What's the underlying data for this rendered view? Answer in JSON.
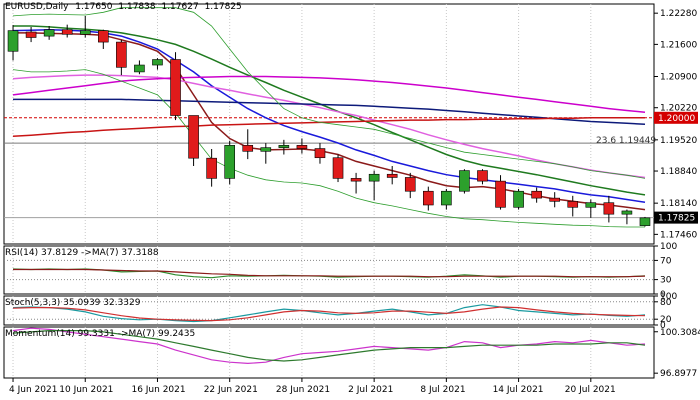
{
  "colors": {
    "bull": "#2ca02c",
    "bear": "#e01b1b",
    "grid": "#c8c8c8",
    "frame": "#000000",
    "hline_red": "#d40000",
    "hline_gray": "#7a7a7a",
    "price_tag_bg": "#000000",
    "red_tag_bg": "#d40000",
    "ma_brown": "#8b1a1a",
    "ma_blue": "#1a1adb",
    "ma_green": "#1f7a1f",
    "ma_pink": "#e060e0",
    "ma_magenta": "#cc00cc",
    "ma_navy": "#0d1a7a",
    "ma_darkred": "#c81414",
    "bb_green": "#2e9e2e",
    "ind_green": "#2e8b2e",
    "ind_brown": "#8b1a1a",
    "stoch_teal": "#1a9aa0",
    "stoch_red": "#d03030",
    "mom_magenta": "#cc33cc",
    "mom_green": "#2e7a2e"
  },
  "chart_data": {
    "type": "candlestick",
    "symbol": "EURUSD,Daily",
    "ohlc_text": {
      "open": "1.17650",
      "high": "1.17838",
      "low": "1.17627",
      "close": "1.17825"
    },
    "current_price": "1.17825",
    "level_price": "1.20000",
    "fib_label": "23.6 1.19449",
    "price_ticks": [
      "1.22280",
      "1.21600",
      "1.20900",
      "1.20220",
      "1.19520",
      "1.18840",
      "1.18140",
      "1.17460"
    ],
    "ylim": [
      1.1725,
      1.2248
    ],
    "dates": [
      "4 Jun 2021",
      "10 Jun 2021",
      "16 Jun 2021",
      "22 Jun 2021",
      "28 Jun 2021",
      "2 Jul 2021",
      "8 Jul 2021",
      "14 Jul 2021",
      "20 Jul 2021"
    ],
    "candles": [
      {
        "o": 1.2145,
        "h": 1.2202,
        "l": 1.2125,
        "c": 1.219
      },
      {
        "o": 1.2187,
        "h": 1.2198,
        "l": 1.2165,
        "c": 1.2175
      },
      {
        "o": 1.2178,
        "h": 1.22,
        "l": 1.217,
        "c": 1.2192
      },
      {
        "o": 1.2192,
        "h": 1.2203,
        "l": 1.2175,
        "c": 1.2182
      },
      {
        "o": 1.2182,
        "h": 1.2222,
        "l": 1.2175,
        "c": 1.219
      },
      {
        "o": 1.219,
        "h": 1.2192,
        "l": 1.215,
        "c": 1.2165
      },
      {
        "o": 1.2165,
        "h": 1.217,
        "l": 1.2093,
        "c": 1.211
      },
      {
        "o": 1.21,
        "h": 1.2125,
        "l": 1.2095,
        "c": 1.2115
      },
      {
        "o": 1.2115,
        "h": 1.213,
        "l": 1.2105,
        "c": 1.2127
      },
      {
        "o": 1.2127,
        "h": 1.2143,
        "l": 1.1995,
        "c": 1.2005
      },
      {
        "o": 1.2005,
        "h": 1.2005,
        "l": 1.1895,
        "c": 1.1912
      },
      {
        "o": 1.1912,
        "h": 1.1932,
        "l": 1.185,
        "c": 1.1868
      },
      {
        "o": 1.1868,
        "h": 1.195,
        "l": 1.1855,
        "c": 1.194
      },
      {
        "o": 1.194,
        "h": 1.1975,
        "l": 1.191,
        "c": 1.1927
      },
      {
        "o": 1.1927,
        "h": 1.1945,
        "l": 1.19,
        "c": 1.1935
      },
      {
        "o": 1.1935,
        "h": 1.1952,
        "l": 1.192,
        "c": 1.194
      },
      {
        "o": 1.194,
        "h": 1.1955,
        "l": 1.1922,
        "c": 1.1933
      },
      {
        "o": 1.1933,
        "h": 1.1945,
        "l": 1.19,
        "c": 1.1913
      },
      {
        "o": 1.1913,
        "h": 1.192,
        "l": 1.186,
        "c": 1.1868
      },
      {
        "o": 1.1868,
        "h": 1.188,
        "l": 1.1835,
        "c": 1.1862
      },
      {
        "o": 1.1862,
        "h": 1.1885,
        "l": 1.182,
        "c": 1.1877
      },
      {
        "o": 1.1877,
        "h": 1.1895,
        "l": 1.1855,
        "c": 1.187
      },
      {
        "o": 1.187,
        "h": 1.188,
        "l": 1.1825,
        "c": 1.184
      },
      {
        "o": 1.184,
        "h": 1.185,
        "l": 1.1798,
        "c": 1.181
      },
      {
        "o": 1.181,
        "h": 1.1845,
        "l": 1.18,
        "c": 1.184
      },
      {
        "o": 1.184,
        "h": 1.1888,
        "l": 1.1835,
        "c": 1.1885
      },
      {
        "o": 1.1885,
        "h": 1.1888,
        "l": 1.1855,
        "c": 1.1862
      },
      {
        "o": 1.1862,
        "h": 1.1875,
        "l": 1.18,
        "c": 1.1805
      },
      {
        "o": 1.1805,
        "h": 1.1845,
        "l": 1.18,
        "c": 1.184
      },
      {
        "o": 1.184,
        "h": 1.1848,
        "l": 1.1815,
        "c": 1.1825
      },
      {
        "o": 1.1825,
        "h": 1.1838,
        "l": 1.1805,
        "c": 1.1818
      },
      {
        "o": 1.1818,
        "h": 1.183,
        "l": 1.1785,
        "c": 1.1805
      },
      {
        "o": 1.1805,
        "h": 1.1822,
        "l": 1.1782,
        "c": 1.1815
      },
      {
        "o": 1.1815,
        "h": 1.183,
        "l": 1.1772,
        "c": 1.179
      },
      {
        "o": 1.179,
        "h": 1.18,
        "l": 1.1768,
        "c": 1.1797
      },
      {
        "o": 1.1765,
        "h": 1.1784,
        "l": 1.1763,
        "c": 1.1782
      }
    ],
    "ma_lines": [
      {
        "color": "#8b1a1a",
        "values": [
          1.2185,
          1.2185,
          1.2184,
          1.2183,
          1.2182,
          1.218,
          1.217,
          1.216,
          1.2145,
          1.211,
          1.205,
          1.199,
          1.1955,
          1.1935,
          1.193,
          1.1931,
          1.1932,
          1.1928,
          1.192,
          1.1905,
          1.1895,
          1.1885,
          1.1875,
          1.1862,
          1.1852,
          1.1848,
          1.185,
          1.1845,
          1.1838,
          1.183,
          1.1823,
          1.1818,
          1.1813,
          1.181,
          1.1805,
          1.18
        ]
      },
      {
        "color": "#1a1adb",
        "values": [
          1.219,
          1.2191,
          1.2192,
          1.2191,
          1.2189,
          1.2185,
          1.2178,
          1.2165,
          1.215,
          1.2125,
          1.21,
          1.207,
          1.2045,
          1.202,
          1.2,
          1.1983,
          1.197,
          1.1958,
          1.1945,
          1.193,
          1.1918,
          1.1905,
          1.1895,
          1.1885,
          1.1876,
          1.187,
          1.1865,
          1.186,
          1.1855,
          1.185,
          1.1845,
          1.1838,
          1.1832,
          1.1828,
          1.1822,
          1.1816
        ]
      },
      {
        "color": "#1f7a1f",
        "values": [
          1.22,
          1.22,
          1.2198,
          1.2195,
          1.2193,
          1.219,
          1.2185,
          1.2178,
          1.217,
          1.216,
          1.2145,
          1.2128,
          1.211,
          1.2093,
          1.2077,
          1.206,
          1.2045,
          1.203,
          1.2014,
          1.2,
          1.1985,
          1.1968,
          1.1952,
          1.1936,
          1.192,
          1.1907,
          1.1897,
          1.189,
          1.1883,
          1.1876,
          1.1868,
          1.186,
          1.1852,
          1.1845,
          1.1838,
          1.1832
        ]
      },
      {
        "color": "#e060e0",
        "values": [
          1.2085,
          1.2088,
          1.209,
          1.2092,
          1.2093,
          1.2093,
          1.2092,
          1.209,
          1.2088,
          1.2083,
          1.2075,
          1.2067,
          1.206,
          1.2052,
          1.2045,
          1.2038,
          1.203,
          1.2022,
          1.2013,
          1.2005,
          1.1995,
          1.1985,
          1.1975,
          1.1963,
          1.1952,
          1.1942,
          1.1933,
          1.1925,
          1.1917,
          1.1908,
          1.19,
          1.1893,
          1.1886,
          1.188,
          1.1875,
          1.187
        ]
      },
      {
        "color": "#cc00cc",
        "values": [
          1.205,
          1.2055,
          1.206,
          1.2065,
          1.207,
          1.2075,
          1.208,
          1.2083,
          1.2085,
          1.2087,
          1.2088,
          1.2089,
          1.209,
          1.209,
          1.209,
          1.2089,
          1.2088,
          1.2087,
          1.2085,
          1.2083,
          1.208,
          1.2077,
          1.2073,
          1.2069,
          1.2065,
          1.206,
          1.2055,
          1.205,
          1.2045,
          1.204,
          1.2035,
          1.203,
          1.2025,
          1.202,
          1.2016,
          1.2012
        ]
      },
      {
        "color": "#0d1a7a",
        "values": [
          1.204,
          1.204,
          1.204,
          1.204,
          1.204,
          1.204,
          1.204,
          1.2039,
          1.2038,
          1.2037,
          1.2036,
          1.2035,
          1.2034,
          1.2033,
          1.2032,
          1.2031,
          1.203,
          1.2029,
          1.2028,
          1.2027,
          1.2025,
          1.2023,
          1.2021,
          1.2019,
          1.2016,
          1.2013,
          1.201,
          1.2007,
          1.2004,
          1.2001,
          1.1998,
          1.1995,
          1.1992,
          1.199,
          1.1988,
          1.1986
        ]
      },
      {
        "color": "#c81414",
        "values": [
          1.196,
          1.1962,
          1.1965,
          1.1968,
          1.197,
          1.1973,
          1.1975,
          1.1977,
          1.1979,
          1.1981,
          1.1982,
          1.1984,
          1.1985,
          1.1986,
          1.1987,
          1.1988,
          1.1989,
          1.199,
          1.1991,
          1.1992,
          1.1993,
          1.1994,
          1.1995,
          1.1995,
          1.1996,
          1.1996,
          1.1997,
          1.1997,
          1.1998,
          1.1998,
          1.1999,
          1.1999,
          1.2,
          1.2,
          1.2,
          1.2
        ]
      },
      {
        "color": "#2e9e2e",
        "values": [
          1.2105,
          1.21,
          1.21,
          1.2102,
          1.2105,
          1.2095,
          1.208,
          1.2065,
          1.205,
          1.201,
          1.196,
          1.191,
          1.189,
          1.1875,
          1.1865,
          1.186,
          1.1858,
          1.1852,
          1.184,
          1.1825,
          1.1815,
          1.1808,
          1.18,
          1.1792,
          1.1785,
          1.178,
          1.1778,
          1.1775,
          1.1772,
          1.177,
          1.1768,
          1.1766,
          1.1765,
          1.1763,
          1.1762,
          1.1762
        ]
      },
      {
        "color": "#2e9e2e",
        "values": [
          1.2222,
          1.2225,
          1.2226,
          1.2225,
          1.2224,
          1.223,
          1.224,
          1.224,
          1.224,
          1.224,
          1.223,
          1.22,
          1.215,
          1.21,
          1.206,
          1.202,
          1.2,
          1.199,
          1.1985,
          1.198,
          1.1975,
          1.1965,
          1.1955,
          1.1945,
          1.1935,
          1.1925,
          1.192,
          1.1915,
          1.191,
          1.1905,
          1.19,
          1.1893,
          1.1885,
          1.188,
          1.1875,
          1.1868
        ]
      }
    ],
    "panels": {
      "rsi": {
        "label": "RSI(14) 37.8129 ->MA(7) 37.3188",
        "ticks": [
          "100",
          "70",
          "30",
          "0"
        ],
        "ylim": [
          0,
          100
        ],
        "levels": [
          70,
          30
        ],
        "series": [
          {
            "color": "#2e8b2e",
            "values": [
              52,
              51,
              52,
              51,
              52,
              50,
              46,
              47,
              48,
              40,
              36,
              34,
              38,
              37,
              38,
              39,
              38,
              37,
              35,
              36,
              37,
              37,
              36,
              35,
              37,
              40,
              38,
              35,
              37,
              37,
              36,
              35,
              36,
              35,
              36,
              37.8
            ]
          },
          {
            "color": "#8b1a1a",
            "values": [
              51,
              51,
              51,
              51,
              51,
              50,
              49,
              48,
              48,
              46,
              44,
              42,
              41,
              39,
              38,
              38,
              38,
              38,
              37,
              37,
              37,
              37,
              37,
              36,
              36,
              37,
              37,
              37,
              37,
              37,
              37,
              36,
              36,
              36,
              36,
              37.3
            ]
          }
        ]
      },
      "stoch": {
        "label": "Stoch(5,3,3) 35.0939 32.3329",
        "ticks": [
          "100",
          "80",
          "20",
          "0"
        ],
        "ylim": [
          0,
          100
        ],
        "levels": [
          80,
          20
        ],
        "series": [
          {
            "color": "#1a9aa0",
            "values": [
              60,
              62,
              60,
              55,
              45,
              30,
              22,
              18,
              20,
              15,
              12,
              15,
              25,
              35,
              45,
              55,
              50,
              42,
              35,
              40,
              48,
              55,
              45,
              35,
              40,
              60,
              70,
              62,
              50,
              45,
              40,
              35,
              38,
              33,
              30,
              35
            ]
          },
          {
            "color": "#d03030",
            "values": [
              58,
              60,
              60,
              58,
              52,
              42,
              32,
              24,
              20,
              18,
              16,
              15,
              18,
              25,
              35,
              45,
              50,
              48,
              42,
              40,
              42,
              48,
              48,
              44,
              40,
              45,
              55,
              62,
              60,
              52,
              45,
              40,
              37,
              35,
              33,
              32
            ]
          }
        ]
      },
      "momentum": {
        "label": "Momentum(14) 99.3331 ->MA(7) 99.2435",
        "ticks": [
          "100.3084",
          "96.8977"
        ],
        "ylim": [
          96.5,
          100.7
        ],
        "series": [
          {
            "color": "#cc33cc",
            "values": [
              100.4,
              100.6,
              100.5,
              100.3,
              100.1,
              99.9,
              99.7,
              99.5,
              99.3,
              98.8,
              98.4,
              98.0,
              97.8,
              97.7,
              97.8,
              98.2,
              98.5,
              98.6,
              98.7,
              98.9,
              99.1,
              99.0,
              98.9,
              98.8,
              99.0,
              99.5,
              99.4,
              99.0,
              99.2,
              99.3,
              99.5,
              99.4,
              99.6,
              99.4,
              99.2,
              99.3
            ]
          },
          {
            "color": "#2e7a2e",
            "values": [
              100.2,
              100.3,
              100.4,
              100.4,
              100.4,
              100.3,
              100.1,
              99.9,
              99.7,
              99.4,
              99.1,
              98.8,
              98.5,
              98.2,
              98.0,
              97.9,
              98.0,
              98.2,
              98.4,
              98.6,
              98.8,
              98.9,
              99.0,
              99.0,
              99.0,
              99.1,
              99.2,
              99.2,
              99.2,
              99.2,
              99.3,
              99.3,
              99.3,
              99.4,
              99.4,
              99.2
            ]
          }
        ]
      }
    }
  }
}
